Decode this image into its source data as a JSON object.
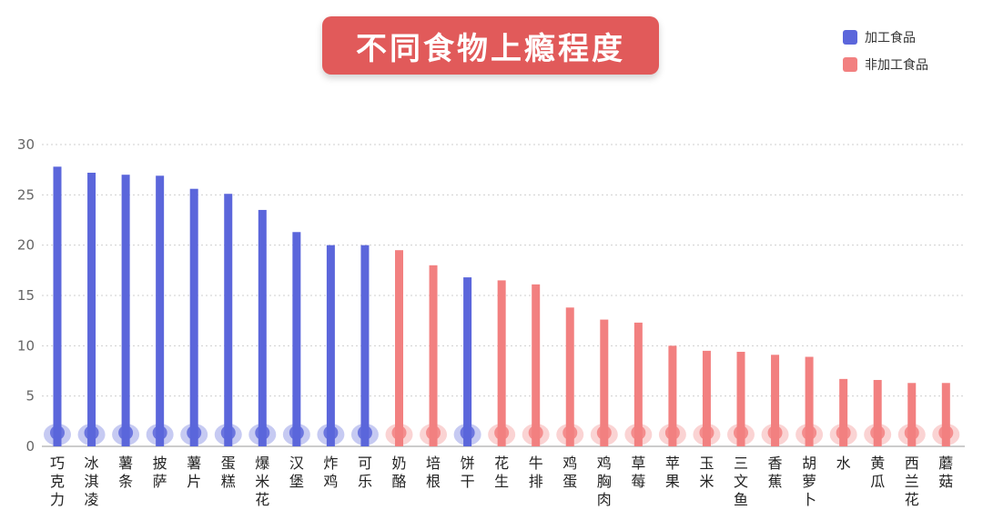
{
  "chart_data": {
    "type": "bar",
    "title": "不同食物上瘾程度",
    "categories": [
      "巧克力",
      "冰淇凌",
      "薯条",
      "披萨",
      "薯片",
      "蛋糕",
      "爆米花",
      "汉堡",
      "炸鸡",
      "可乐",
      "奶酪",
      "培根",
      "饼干",
      "花生",
      "牛排",
      "鸡蛋",
      "鸡胸肉",
      "草莓",
      "苹果",
      "玉米",
      "三文鱼",
      "香蕉",
      "胡萝卜",
      "水",
      "黄瓜",
      "西兰花",
      "蘑菇"
    ],
    "values": [
      27.8,
      27.2,
      27.0,
      26.9,
      25.6,
      25.1,
      23.5,
      21.3,
      20.0,
      20.0,
      19.5,
      18.0,
      16.8,
      16.5,
      16.1,
      13.8,
      12.6,
      12.3,
      10.0,
      9.5,
      9.4,
      9.1,
      8.9,
      6.7,
      6.6,
      6.3,
      6.3
    ],
    "groups": [
      "加工食品",
      "加工食品",
      "加工食品",
      "加工食品",
      "加工食品",
      "加工食品",
      "加工食品",
      "加工食品",
      "加工食品",
      "加工食品",
      "非加工食品",
      "非加工食品",
      "加工食品",
      "非加工食品",
      "非加工食品",
      "非加工食品",
      "非加工食品",
      "非加工食品",
      "非加工食品",
      "非加工食品",
      "非加工食品",
      "非加工食品",
      "非加工食品",
      "非加工食品",
      "非加工食品",
      "非加工食品",
      "非加工食品"
    ],
    "series": [
      {
        "name": "加工食品",
        "color": "#5b66db"
      },
      {
        "name": "非加工食品",
        "color": "#f28080"
      }
    ],
    "yticks": [
      0,
      5,
      10,
      15,
      20,
      25,
      30
    ],
    "ylim": [
      0,
      30
    ],
    "grid": true,
    "legend_position": "top-right",
    "icons": [
      "chocolate-icon",
      "ice-cream-icon",
      "fries-icon",
      "pizza-icon",
      "chips-icon",
      "cake-icon",
      "popcorn-icon",
      "burger-icon",
      "fried-chicken-icon",
      "cola-icon",
      "cheese-icon",
      "bacon-icon",
      "cookie-icon",
      "peanut-icon",
      "steak-icon",
      "egg-icon",
      "chicken-breast-icon",
      "strawberry-icon",
      "apple-icon",
      "corn-icon",
      "salmon-icon",
      "banana-icon",
      "carrot-icon",
      "water-bottle-icon",
      "cucumber-icon",
      "broccoli-icon",
      "mushroom-icon"
    ]
  }
}
